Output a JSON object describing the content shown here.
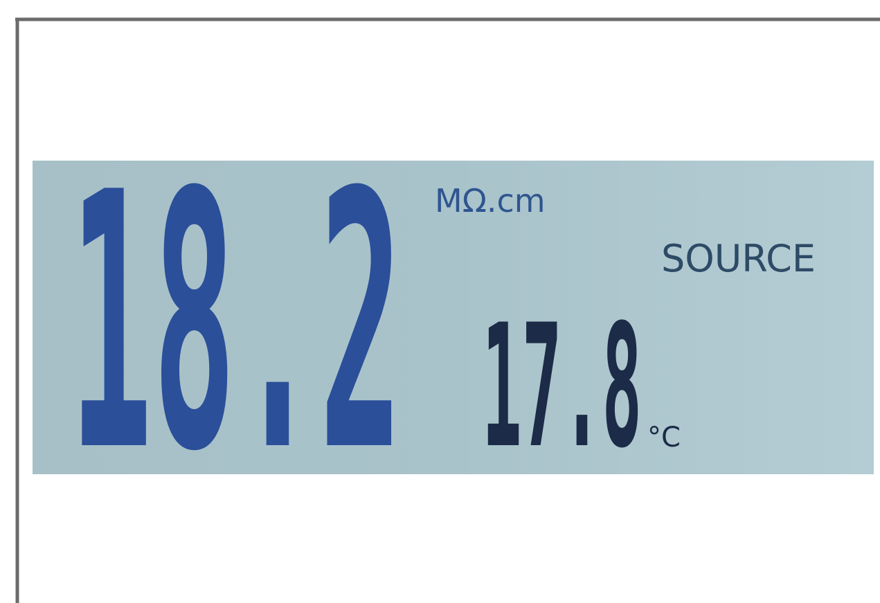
{
  "display": {
    "reading": "18.2",
    "unit": "MΩ.cm",
    "mode": "SOURCE",
    "temperature": "17.8",
    "temperature_unit": "°C"
  }
}
